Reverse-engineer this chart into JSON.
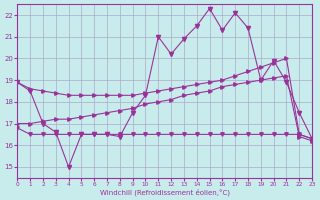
{
  "background_color": "#c8ecec",
  "grid_color": "#aaaacc",
  "line_color": "#993399",
  "xlim": [
    0,
    23
  ],
  "ylim": [
    14.5,
    22.5
  ],
  "yticks": [
    15,
    16,
    17,
    18,
    19,
    20,
    21,
    22
  ],
  "xticks": [
    0,
    1,
    2,
    3,
    4,
    5,
    6,
    7,
    8,
    9,
    10,
    11,
    12,
    13,
    14,
    15,
    16,
    17,
    18,
    19,
    20,
    21,
    22,
    23
  ],
  "xlabel": "Windchill (Refroidissement éolien,°C)",
  "line1_x": [
    0,
    1,
    2,
    3,
    4,
    5,
    6,
    7,
    8,
    9,
    10,
    11,
    12,
    13,
    14,
    15,
    16,
    17,
    18,
    19,
    20,
    21,
    22,
    23
  ],
  "line1_y": [
    18.9,
    18.6,
    18.5,
    18.4,
    18.3,
    18.3,
    18.3,
    18.3,
    18.3,
    18.3,
    18.4,
    18.5,
    18.6,
    18.7,
    18.8,
    18.9,
    19.0,
    19.2,
    19.4,
    19.6,
    19.8,
    20.0,
    16.5,
    16.3
  ],
  "line2_x": [
    0,
    1,
    2,
    3,
    4,
    5,
    6,
    7,
    8,
    9,
    10,
    11,
    12,
    13,
    14,
    15,
    16,
    17,
    18,
    19,
    20,
    21,
    22,
    23
  ],
  "line2_y": [
    17.0,
    17.0,
    17.1,
    17.2,
    17.2,
    17.3,
    17.4,
    17.5,
    17.6,
    17.7,
    17.9,
    18.0,
    18.1,
    18.3,
    18.4,
    18.5,
    18.7,
    18.8,
    18.9,
    19.0,
    19.1,
    19.2,
    16.4,
    16.2
  ],
  "line3_x": [
    0,
    1,
    2,
    3,
    4,
    5,
    6,
    7,
    8,
    9,
    10,
    11,
    12,
    13,
    14,
    15,
    16,
    17,
    18,
    19,
    20,
    21,
    22,
    23
  ],
  "line3_y": [
    18.9,
    18.5,
    17.0,
    16.6,
    15.0,
    16.5,
    16.5,
    16.5,
    16.4,
    17.5,
    18.3,
    21.0,
    20.2,
    20.9,
    21.5,
    22.3,
    21.3,
    22.1,
    21.4,
    19.0,
    19.9,
    18.9,
    17.5,
    16.3
  ],
  "line4_x": [
    0,
    1,
    2,
    3,
    4,
    5,
    6,
    7,
    8,
    9,
    10,
    11,
    12,
    13,
    14,
    15,
    16,
    17,
    18,
    19,
    20,
    21,
    22,
    23
  ],
  "line4_y": [
    16.8,
    16.5,
    16.5,
    16.5,
    16.5,
    16.5,
    16.5,
    16.5,
    16.5,
    16.5,
    16.5,
    16.5,
    16.5,
    16.5,
    16.5,
    16.5,
    16.5,
    16.5,
    16.5,
    16.5,
    16.5,
    16.5,
    16.5,
    16.3
  ]
}
